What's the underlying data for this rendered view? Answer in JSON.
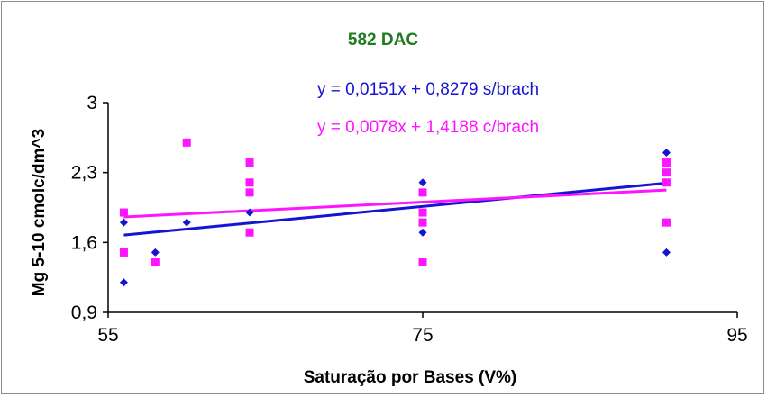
{
  "chart_data": {
    "type": "scatter",
    "title": "582 DAC",
    "title_color": "#1e7b1e",
    "xlabel": "Saturação por Bases (V%)",
    "ylabel": "Mg 5-10 cmolc/dm^3",
    "xlim": [
      55,
      95
    ],
    "ylim": [
      0.9,
      3.0
    ],
    "x_ticks": [
      55,
      75,
      95
    ],
    "x_tick_labels": [
      "55",
      "75",
      "95"
    ],
    "y_ticks": [
      0.9,
      1.6,
      2.3,
      3.0
    ],
    "y_tick_labels": [
      "0,9",
      "1,6",
      "2,3",
      "3"
    ],
    "grid": false,
    "series": [
      {
        "color": "#1414d2",
        "marker": "diamond",
        "points": [
          {
            "x": 56,
            "y": 1.8
          },
          {
            "x": 56,
            "y": 1.2
          },
          {
            "x": 58,
            "y": 1.5
          },
          {
            "x": 60,
            "y": 1.8
          },
          {
            "x": 64,
            "y": 1.9
          },
          {
            "x": 75,
            "y": 2.2
          },
          {
            "x": 75,
            "y": 1.7
          },
          {
            "x": 90.5,
            "y": 2.5
          },
          {
            "x": 90.5,
            "y": 1.5
          }
        ],
        "trendline": {
          "slope": 0.0151,
          "intercept": 0.8279,
          "x_range": [
            56,
            90.5
          ]
        },
        "equation_label": "y = 0,0151x + 0,8279 s/brach"
      },
      {
        "color": "#ff14ff",
        "marker": "square",
        "points": [
          {
            "x": 56,
            "y": 1.9
          },
          {
            "x": 56,
            "y": 1.5
          },
          {
            "x": 58,
            "y": 1.4
          },
          {
            "x": 60,
            "y": 2.6
          },
          {
            "x": 64,
            "y": 2.4
          },
          {
            "x": 64,
            "y": 2.2
          },
          {
            "x": 64,
            "y": 2.1
          },
          {
            "x": 64,
            "y": 1.7
          },
          {
            "x": 75,
            "y": 2.1
          },
          {
            "x": 75,
            "y": 1.9
          },
          {
            "x": 75,
            "y": 1.8
          },
          {
            "x": 75,
            "y": 1.4
          },
          {
            "x": 90.5,
            "y": 2.4
          },
          {
            "x": 90.5,
            "y": 2.3
          },
          {
            "x": 90.5,
            "y": 2.2
          },
          {
            "x": 90.5,
            "y": 1.8
          }
        ],
        "trendline": {
          "slope": 0.0078,
          "intercept": 1.4188,
          "x_range": [
            56,
            90.5
          ]
        },
        "equation_label": "y = 0,0078x + 1,4188 c/brach"
      }
    ]
  }
}
